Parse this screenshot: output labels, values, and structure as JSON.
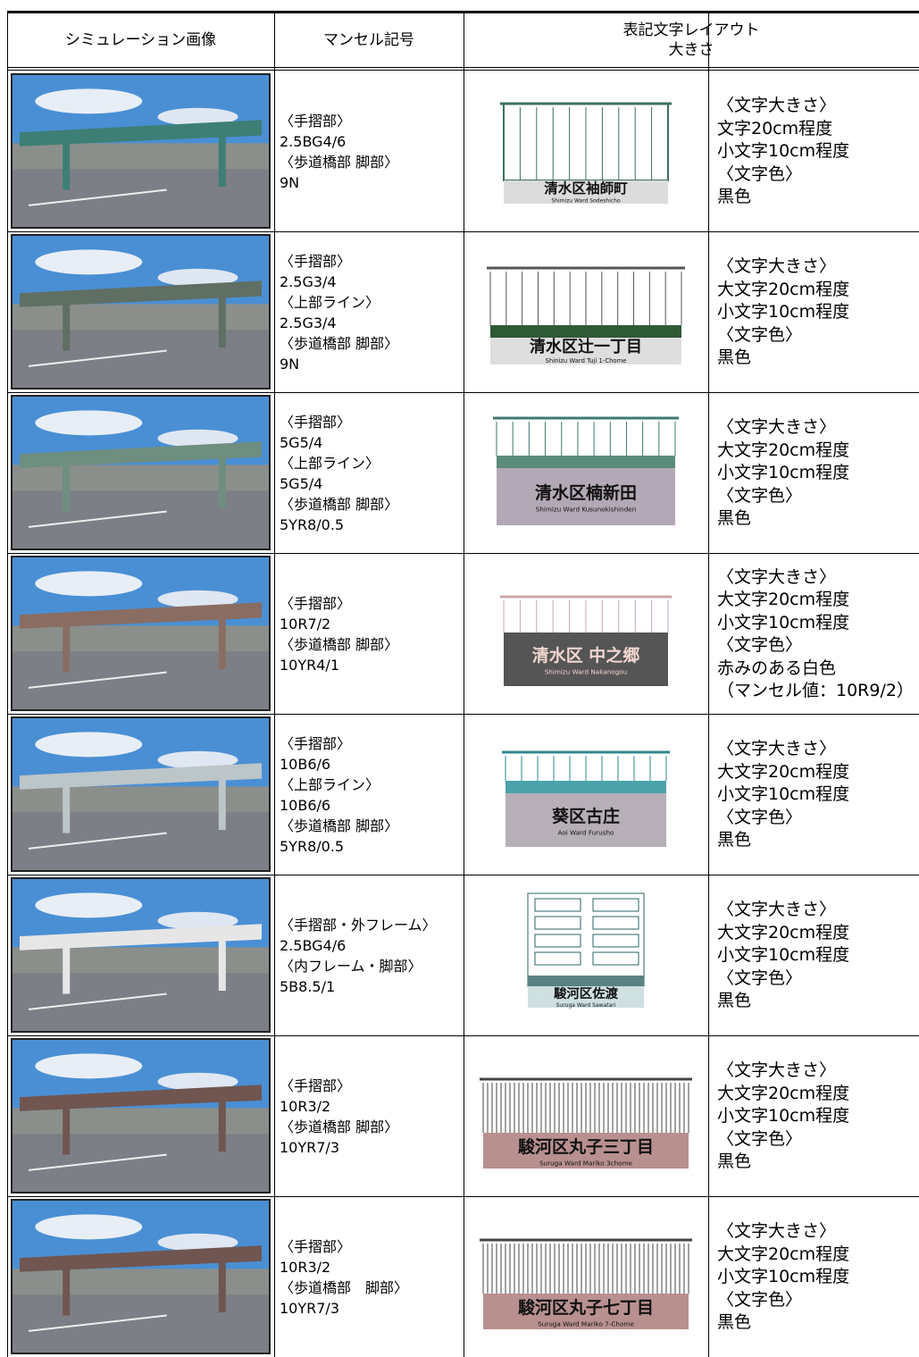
{
  "table": {
    "header": [
      "シミュレーション画像",
      "マンセル記号",
      "表記文字レイアウト",
      "大きさ"
    ],
    "rows": [
      {
        "munsell": [
          "〈手摺部〉",
          "2.5BG4/6",
          "〈歩道橋部 脚部〉",
          "9N"
        ],
        "sign": "清水区袖師町",
        "romaji": "Shimizu Ward Sodeshicho",
        "size": [
          "〈文字大きさ〉",
          "文字20cm程度",
          "小文字10cm程度",
          "〈文字色〉",
          "黒色"
        ]
      },
      {
        "munsell": [
          "〈手摺部〉",
          "2.5G3/4",
          "〈上部ライン〉",
          "2.5G3/4",
          "〈歩道橋部 脚部〉",
          "9N"
        ],
        "sign": "清水区辻一丁目",
        "romaji": "Shinizu Ward Tuji 1-Chome",
        "size": [
          "〈文字大きさ〉",
          "大文字20cm程度",
          "小文字10cm程度",
          "〈文字色〉",
          "黒色"
        ]
      },
      {
        "munsell": [
          "〈手摺部〉",
          "5G5/4",
          "〈上部ライン〉",
          "5G5/4",
          "〈歩道橋部 脚部〉",
          "5YR8/0.5"
        ],
        "sign": "清水区楠新田",
        "romaji": "Shimizu Ward Kusunokishinden",
        "size": [
          "〈文字大きさ〉",
          "大文字20cm程度",
          "小文字10cm程度",
          "〈文字色〉",
          "黒色"
        ]
      },
      {
        "munsell": [
          "〈手摺部〉",
          "10R7/2",
          "〈歩道橋部 脚部〉",
          "10YR4/1"
        ],
        "sign": "清水区 中之郷",
        "romaji": "Shimizu Ward Nakanogou",
        "size": [
          "〈文字大きさ〉",
          "大文字20cm程度",
          "小文字10cm程度",
          "〈文字色〉",
          "赤みのある白色",
          "（マンセル値：10R9/2）"
        ]
      },
      {
        "munsell": [
          "〈手摺部〉",
          "10B6/6",
          "〈上部ライン〉",
          "10B6/6",
          "〈歩道橋部 脚部〉",
          "5YR8/0.5"
        ],
        "sign": "葵区古庄",
        "romaji": "Aoi Ward Furusho",
        "size": [
          "〈文字大きさ〉",
          "大文字20cm程度",
          "小文字10cm程度",
          "〈文字色〉",
          "黒色"
        ]
      },
      {
        "munsell": [
          "〈手摺部・外フレーム〉",
          "2.5BG4/6",
          "〈内フレーム・脚部〉",
          "5B8.5/1"
        ],
        "sign": "駿河区佐渡",
        "romaji": "Suruga Ward Sawatari",
        "size": [
          "〈文字大きさ〉",
          "大文字20cm程度",
          "小文字10cm程度",
          "〈文字色〉",
          "黒色"
        ]
      },
      {
        "munsell": [
          "〈手摺部〉",
          "10R3/2",
          "〈歩道橋部 脚部〉",
          "10YR7/3"
        ],
        "sign": "駿河区丸子三丁目",
        "romaji": "Suruga Ward Mariko 3chome",
        "size": [
          "〈文字大きさ〉",
          "大文字20cm程度",
          "小文字10cm程度",
          "〈文字色〉",
          "黒色"
        ]
      },
      {
        "munsell": [
          "〈手摺部〉",
          "10R3/2",
          "〈歩道橋部　脚部〉",
          "10YR7/3"
        ],
        "sign": "駿河区丸子七丁目",
        "romaji": "Suruga Ward Mariko 7-Chome",
        "size": [
          "〈文字大きさ〉",
          "大文字20cm程度",
          "小文字10cm程度",
          "〈文字色〉",
          "黒色"
        ]
      }
    ]
  }
}
